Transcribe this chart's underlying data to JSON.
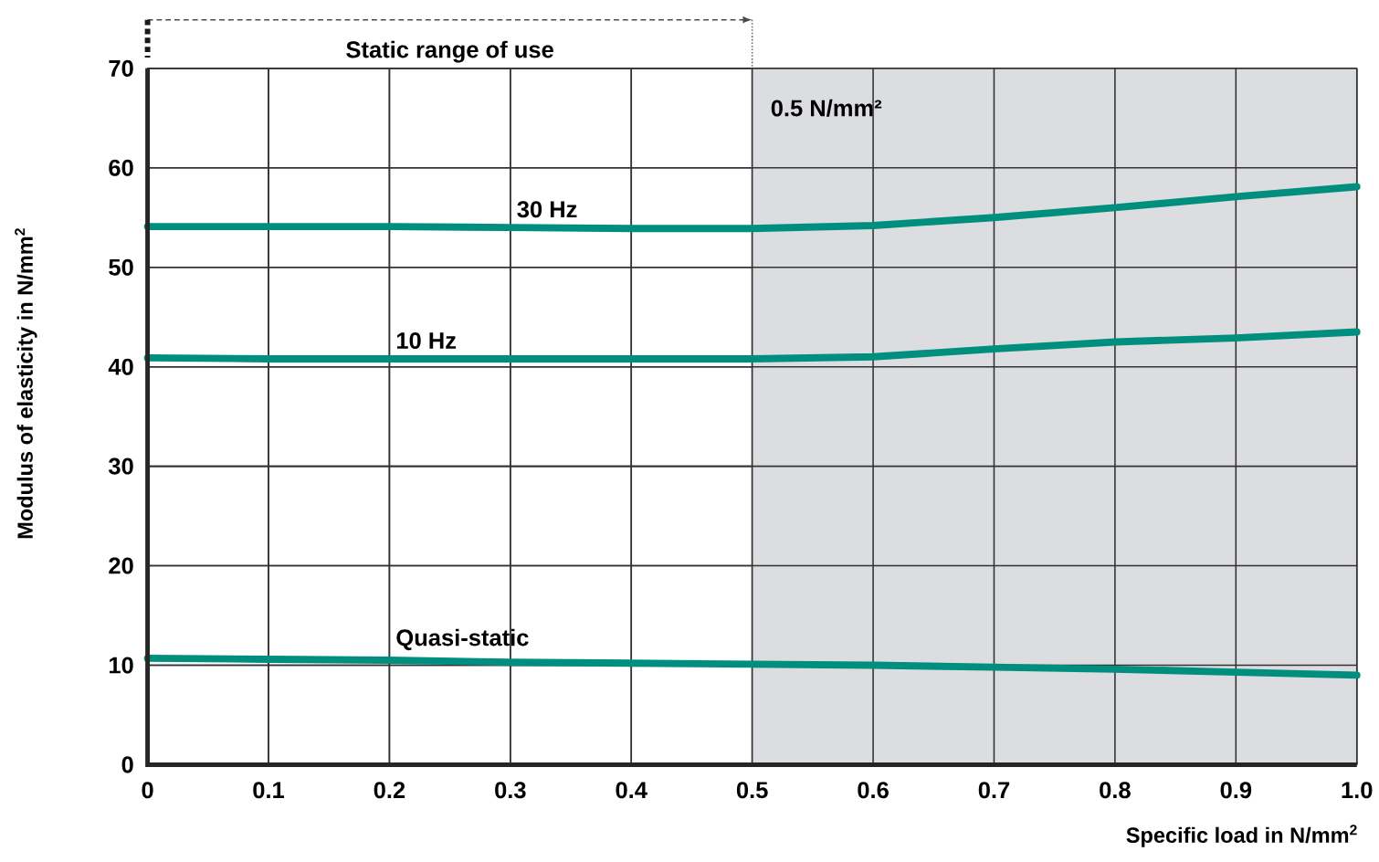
{
  "chart_data": {
    "type": "line",
    "xlabel": "Specific load in N/mm$^{2}$",
    "ylabel": "Modulus of elasticity in N/mm$^{2}$",
    "x": [
      0,
      0.1,
      0.2,
      0.3,
      0.4,
      0.5,
      0.6,
      0.7,
      0.8,
      0.9,
      1.0
    ],
    "series": [
      {
        "name": "30 Hz",
        "color": "#008f7e",
        "values": [
          54.1,
          54.1,
          54.1,
          54.0,
          53.9,
          53.9,
          54.2,
          55.0,
          56.0,
          57.1,
          58.1
        ]
      },
      {
        "name": "10 Hz",
        "color": "#008f7e",
        "values": [
          40.9,
          40.8,
          40.8,
          40.8,
          40.8,
          40.8,
          41.0,
          41.8,
          42.5,
          42.9,
          43.5
        ]
      },
      {
        "name": "Quasi-static",
        "color": "#008f7e",
        "values": [
          10.7,
          10.6,
          10.5,
          10.3,
          10.2,
          10.1,
          10.0,
          9.8,
          9.6,
          9.3,
          9.0
        ]
      }
    ],
    "xlim": [
      0,
      1.0
    ],
    "ylim": [
      0,
      70
    ],
    "xticks": [
      0,
      0.1,
      0.2,
      0.3,
      0.4,
      0.5,
      0.6,
      0.7,
      0.8,
      0.9,
      {
        "value": 1.0,
        "label": "1.0"
      }
    ],
    "yticks": [
      0,
      10,
      20,
      30,
      40,
      50,
      60,
      70
    ],
    "bands": [
      {
        "axis": "x",
        "from": 0.5,
        "to": 1.0,
        "label": "0.5 N/mm²",
        "color": "#dcdde0"
      }
    ],
    "annotations": [
      "Static range of use"
    ],
    "grid": true,
    "legend": false,
    "marker": "none",
    "line_style": "solid"
  }
}
